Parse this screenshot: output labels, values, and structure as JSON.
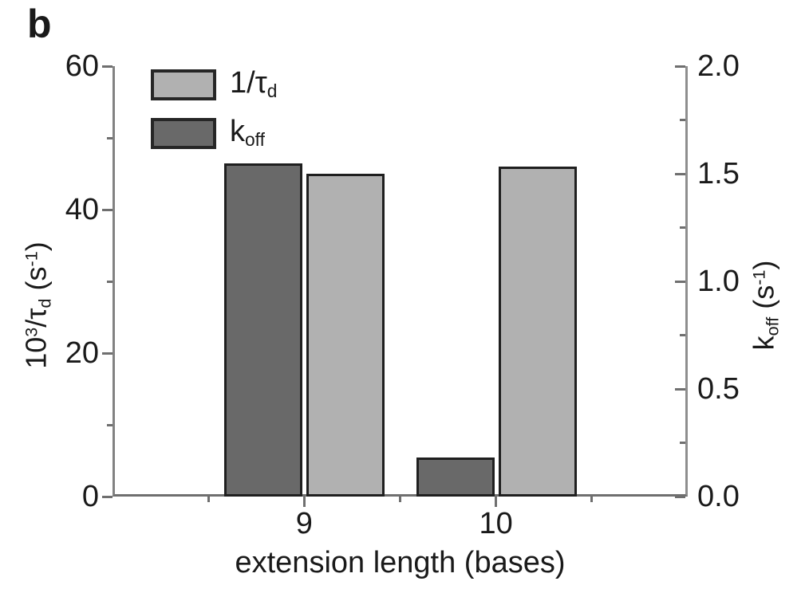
{
  "panel_label": "b",
  "colors": {
    "bar_light": "#b1b1b1",
    "bar_dark": "#696969",
    "bar_border": "#1f1f1f",
    "axis_line": "#828282",
    "text": "#1a1a1a"
  },
  "chart_data": {
    "type": "bar",
    "title": "",
    "categories": [
      "9",
      "10"
    ],
    "x_title": "extension length (bases)",
    "x_range": [
      8,
      11
    ],
    "x_tick_values": [
      9,
      10
    ],
    "x_minor_tick_values": [
      8.5,
      9.5,
      10.5
    ],
    "grid": "off",
    "legend_position": "top-left-inside",
    "left_axis": {
      "label_plain": "10^3/tau_d (s^-1)",
      "range": [
        0,
        60
      ],
      "tick_values": [
        0,
        20,
        40,
        60
      ],
      "tick_labels": [
        "0",
        "20",
        "40",
        "60"
      ],
      "minor_tick_values": [
        10,
        30,
        50
      ],
      "title": {
        "p1": "10",
        "sup1": "3",
        "p2": "/τ",
        "sub1": "d",
        "p3": " (s",
        "sup2": "-1",
        "p4": ")"
      }
    },
    "right_axis": {
      "label_plain": "k_off (s^-1)",
      "range": [
        0,
        2
      ],
      "tick_values": [
        0,
        0.5,
        1,
        1.5,
        2
      ],
      "tick_labels": [
        "0.0",
        "0.5",
        "1.0",
        "1.5",
        "2.0"
      ],
      "minor_tick_values": [
        0.25,
        0.75,
        1.25,
        1.75
      ],
      "title": {
        "p1": "k",
        "sub1": "off",
        "p2": " (s",
        "sup1": "-1",
        "p3": ")"
      }
    },
    "series": [
      {
        "name": "koff",
        "axis": "right_axis",
        "color": "#696969",
        "values": [
          1.55,
          0.18
        ]
      },
      {
        "name": "inv_tau_d",
        "axis": "left_axis",
        "color": "#b1b1b1",
        "values": [
          45,
          46
        ]
      }
    ],
    "legend": [
      {
        "base": "1/τ",
        "sub": "d",
        "swatch": "light"
      },
      {
        "base": "k",
        "sub": "off",
        "swatch": "dark"
      }
    ]
  }
}
